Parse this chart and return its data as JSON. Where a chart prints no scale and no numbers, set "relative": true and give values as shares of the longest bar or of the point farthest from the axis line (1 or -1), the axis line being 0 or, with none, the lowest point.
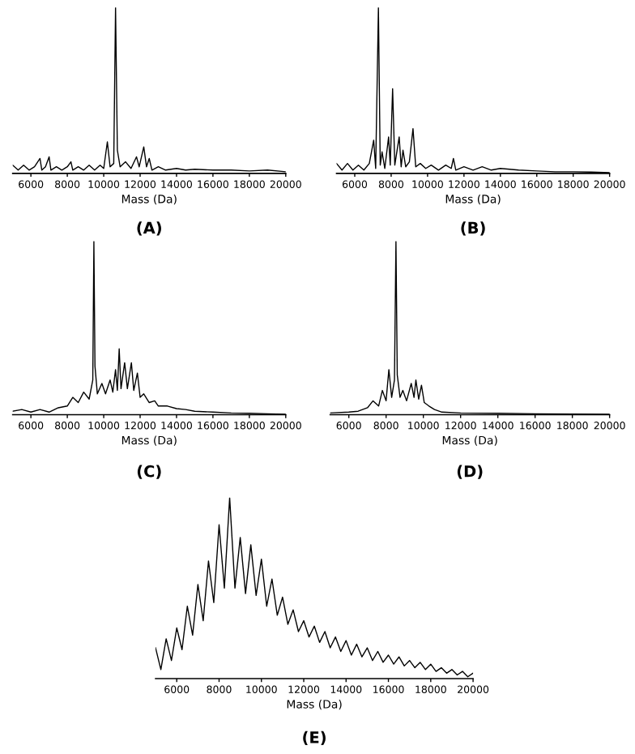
{
  "chart_data": [
    {
      "type": "line",
      "relative": true,
      "xlabel": "Mass (Da)",
      "annotations": [
        "(A)"
      ],
      "xlim": [
        5000,
        20000
      ],
      "xticks": [
        6000,
        8000,
        10000,
        12000,
        14000,
        16000,
        18000,
        20000
      ],
      "tick_labels": "x",
      "grid": false,
      "legend": false,
      "series": [
        {
          "color": "#000000",
          "x": [
            5000,
            5300,
            5600,
            5900,
            6200,
            6500,
            6600,
            6800,
            7000,
            7100,
            7400,
            7700,
            8000,
            8200,
            8300,
            8600,
            8900,
            9200,
            9500,
            9800,
            10000,
            10200,
            10350,
            10550,
            10650,
            10750,
            10900,
            11200,
            11500,
            11800,
            11950,
            12200,
            12350,
            12500,
            12650,
            13000,
            13400,
            14000,
            14500,
            15000,
            16000,
            17000,
            18000,
            19000,
            20000
          ],
          "values": [
            0.05,
            0.02,
            0.05,
            0.02,
            0.04,
            0.09,
            0.02,
            0.04,
            0.1,
            0.02,
            0.04,
            0.02,
            0.04,
            0.07,
            0.02,
            0.04,
            0.02,
            0.05,
            0.02,
            0.05,
            0.03,
            0.19,
            0.04,
            0.06,
            1.0,
            0.14,
            0.04,
            0.07,
            0.03,
            0.1,
            0.04,
            0.16,
            0.04,
            0.09,
            0.02,
            0.04,
            0.02,
            0.03,
            0.02,
            0.025,
            0.02,
            0.02,
            0.015,
            0.02,
            0.01
          ]
        }
      ]
    },
    {
      "type": "line",
      "relative": true,
      "xlabel": "Mass (Da)",
      "annotations": [
        "(B)"
      ],
      "xlim": [
        5000,
        20000
      ],
      "xticks": [
        6000,
        8000,
        10000,
        12000,
        14000,
        16000,
        18000,
        20000
      ],
      "tick_labels": "x",
      "grid": false,
      "legend": false,
      "series": [
        {
          "color": "#000000",
          "x": [
            5000,
            5300,
            5600,
            5900,
            6200,
            6500,
            6800,
            7040,
            7150,
            7300,
            7400,
            7500,
            7650,
            7860,
            7950,
            8080,
            8200,
            8440,
            8550,
            8650,
            8800,
            9000,
            9200,
            9350,
            9600,
            9900,
            10200,
            10600,
            11000,
            11300,
            11420,
            11550,
            12000,
            12500,
            13000,
            13500,
            14000,
            15000,
            16000,
            17000,
            18000,
            19000,
            20000
          ],
          "values": [
            0.06,
            0.02,
            0.06,
            0.02,
            0.05,
            0.02,
            0.06,
            0.2,
            0.03,
            1.0,
            0.05,
            0.13,
            0.03,
            0.22,
            0.05,
            0.51,
            0.05,
            0.22,
            0.04,
            0.14,
            0.04,
            0.07,
            0.27,
            0.04,
            0.06,
            0.03,
            0.05,
            0.02,
            0.05,
            0.03,
            0.09,
            0.02,
            0.04,
            0.02,
            0.04,
            0.02,
            0.03,
            0.02,
            0.015,
            0.01,
            0.01,
            0.008,
            0.005
          ]
        }
      ]
    },
    {
      "type": "line",
      "relative": true,
      "xlabel": "Mass (Da)",
      "annotations": [
        "(C)"
      ],
      "xlim": [
        5000,
        20000
      ],
      "xticks": [
        6000,
        8000,
        10000,
        12000,
        14000,
        16000,
        18000,
        20000
      ],
      "tick_labels": "x",
      "grid": false,
      "legend": false,
      "series": [
        {
          "color": "#000000",
          "x": [
            5000,
            5500,
            6000,
            6500,
            7000,
            7500,
            8000,
            8300,
            8600,
            8900,
            9200,
            9400,
            9460,
            9520,
            9650,
            9900,
            10100,
            10350,
            10500,
            10650,
            10750,
            10850,
            10950,
            11150,
            11300,
            11520,
            11650,
            11850,
            12000,
            12200,
            12500,
            12800,
            13000,
            13500,
            14000,
            14500,
            15000,
            16000,
            17000,
            18000,
            19000,
            20000
          ],
          "values": [
            0.02,
            0.03,
            0.015,
            0.03,
            0.015,
            0.04,
            0.05,
            0.1,
            0.07,
            0.13,
            0.09,
            0.2,
            1.0,
            0.28,
            0.12,
            0.18,
            0.12,
            0.2,
            0.13,
            0.26,
            0.14,
            0.38,
            0.15,
            0.3,
            0.15,
            0.3,
            0.14,
            0.24,
            0.1,
            0.12,
            0.07,
            0.08,
            0.05,
            0.05,
            0.035,
            0.03,
            0.02,
            0.015,
            0.01,
            0.008,
            0.005,
            0.003
          ]
        }
      ]
    },
    {
      "type": "line",
      "relative": true,
      "xlabel": "Mass (Da)",
      "annotations": [
        "(D)"
      ],
      "xlim": [
        5000,
        20000
      ],
      "xticks": [
        6000,
        8000,
        10000,
        12000,
        14000,
        16000,
        18000,
        20000
      ],
      "tick_labels": "x",
      "grid": false,
      "legend": false,
      "series": [
        {
          "color": "#000000",
          "x": [
            5000,
            6000,
            6500,
            7000,
            7300,
            7600,
            7800,
            8000,
            8150,
            8300,
            8450,
            8530,
            8600,
            8750,
            8900,
            9100,
            9350,
            9500,
            9600,
            9750,
            9900,
            10050,
            10300,
            10600,
            11000,
            12000,
            14000,
            16000,
            18000,
            20000
          ],
          "values": [
            0.01,
            0.015,
            0.02,
            0.04,
            0.08,
            0.05,
            0.14,
            0.08,
            0.26,
            0.1,
            0.2,
            1.0,
            0.23,
            0.1,
            0.14,
            0.08,
            0.18,
            0.1,
            0.2,
            0.09,
            0.17,
            0.07,
            0.05,
            0.03,
            0.015,
            0.01,
            0.008,
            0.005,
            0.004,
            0.003
          ]
        }
      ]
    },
    {
      "type": "line",
      "relative": true,
      "xlabel": "Mass (Da)",
      "annotations": [
        "(E)"
      ],
      "xlim": [
        5000,
        20000
      ],
      "xticks": [
        6000,
        8000,
        10000,
        12000,
        14000,
        16000,
        18000,
        20000
      ],
      "tick_labels": "x",
      "grid": false,
      "legend": false,
      "series": [
        {
          "color": "#000000",
          "x": [
            5000,
            5250,
            5500,
            5750,
            6000,
            6250,
            6500,
            6750,
            7000,
            7250,
            7500,
            7750,
            8000,
            8250,
            8500,
            8750,
            9000,
            9250,
            9500,
            9750,
            10000,
            10250,
            10500,
            10750,
            11000,
            11250,
            11500,
            11750,
            12000,
            12250,
            12500,
            12750,
            13000,
            13250,
            13500,
            13750,
            14000,
            14250,
            14500,
            14750,
            15000,
            15250,
            15500,
            15750,
            16000,
            16250,
            16500,
            16750,
            17000,
            17250,
            17500,
            17750,
            18000,
            18250,
            18500,
            18750,
            19000,
            19250,
            19500,
            19750,
            20000
          ],
          "values": [
            0.17,
            0.05,
            0.22,
            0.1,
            0.28,
            0.16,
            0.4,
            0.24,
            0.52,
            0.32,
            0.65,
            0.42,
            0.85,
            0.5,
            1.0,
            0.5,
            0.78,
            0.47,
            0.74,
            0.46,
            0.66,
            0.4,
            0.55,
            0.35,
            0.45,
            0.3,
            0.38,
            0.26,
            0.32,
            0.23,
            0.29,
            0.2,
            0.26,
            0.17,
            0.23,
            0.15,
            0.21,
            0.13,
            0.19,
            0.12,
            0.17,
            0.1,
            0.15,
            0.09,
            0.13,
            0.08,
            0.12,
            0.07,
            0.1,
            0.06,
            0.09,
            0.05,
            0.08,
            0.04,
            0.06,
            0.03,
            0.05,
            0.02,
            0.04,
            0.01,
            0.03
          ]
        }
      ]
    }
  ]
}
